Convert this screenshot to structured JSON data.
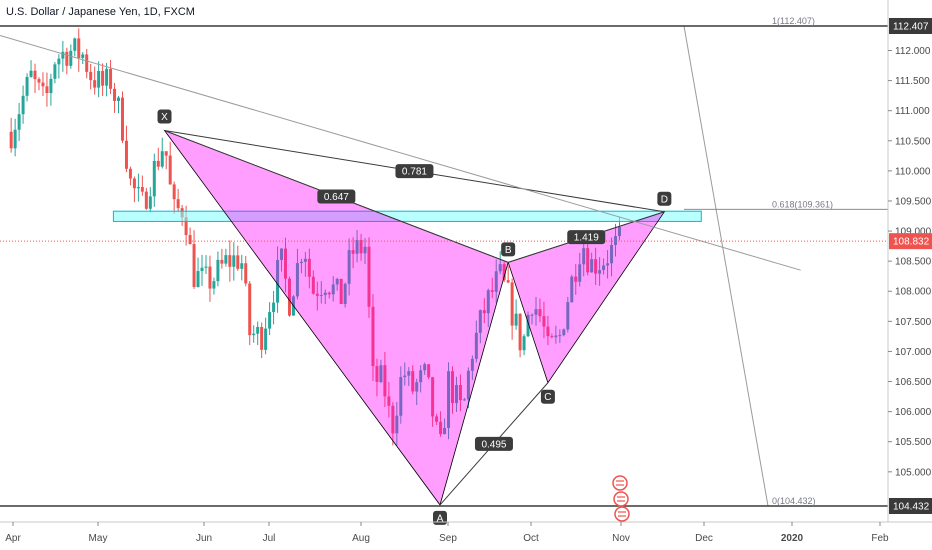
{
  "title": "U.S. Dollar / Japanese Yen, 1D, FXCM",
  "colors": {
    "up": "#26a69a",
    "down": "#ef5350",
    "pattern_fill": "#ff00ff",
    "zone_fill": "#7fffff",
    "price_line": "#ef5350",
    "last_price_bg": "#ef5350",
    "tag_bg": "#3c3c3c",
    "trend": "#9b9b9b"
  },
  "price_scale": {
    "ticks": [
      "112.000",
      "111.500",
      "111.000",
      "110.500",
      "110.000",
      "109.500",
      "109.000",
      "108.500",
      "108.000",
      "107.500",
      "107.000",
      "106.500",
      "106.000",
      "105.500",
      "105.000"
    ],
    "top_label": "112.407",
    "bottom_label": "104.432",
    "last_price": "108.832"
  },
  "time_scale": {
    "labels": [
      "Apr",
      "May",
      "Jun",
      "Jul",
      "Aug",
      "Sep",
      "Oct",
      "Nov",
      "Dec",
      "2020",
      "Feb"
    ]
  },
  "chart_data": {
    "type": "candlestick",
    "ylim": [
      104.25,
      112.55
    ],
    "pattern_points": [
      {
        "label": "X",
        "date": "2019-05-21",
        "price": 110.67
      },
      {
        "label": "A",
        "date": "2019-08-26",
        "price": 104.45
      },
      {
        "label": "B",
        "date": "2019-09-19",
        "price": 108.48
      },
      {
        "label": "C",
        "date": "2019-10-03",
        "price": 106.48
      },
      {
        "label": "D",
        "date": "2019-11-13",
        "price": 109.32
      }
    ],
    "ratios": [
      {
        "label": "0.647",
        "value": 0.647
      },
      {
        "label": "0.781",
        "value": 0.781
      },
      {
        "label": "0.495",
        "value": 0.495
      },
      {
        "label": "1.419",
        "value": 1.419
      }
    ],
    "fib_levels": [
      {
        "label": "1(112.407)",
        "price": 112.407
      },
      {
        "label": "0.618(109.361)",
        "price": 109.361
      },
      {
        "label": "0(104.432)",
        "price": 104.432
      }
    ],
    "zone": {
      "from_date": "2019-05-03",
      "to_date": "2019-11-26",
      "low": 109.16,
      "high": 109.33
    },
    "trendline": {
      "start": {
        "date": "2019-03-27",
        "price": 112.25
      },
      "end": {
        "date": "2019-12-31",
        "price": 108.35
      }
    },
    "closes": [
      {
        "date": "2019-03-28",
        "close": 110.65
      },
      {
        "date": "2019-04-01",
        "close": 111.2
      },
      {
        "date": "2019-04-04",
        "close": 111.55
      },
      {
        "date": "2019-04-09",
        "close": 111.1
      },
      {
        "date": "2019-04-12",
        "close": 111.85
      },
      {
        "date": "2019-04-17",
        "close": 112.0
      },
      {
        "date": "2019-04-22",
        "close": 111.95
      },
      {
        "date": "2019-04-25",
        "close": 111.6
      },
      {
        "date": "2019-04-29",
        "close": 111.4
      },
      {
        "date": "2019-05-02",
        "close": 111.5
      },
      {
        "date": "2019-05-06",
        "close": 110.8
      },
      {
        "date": "2019-05-09",
        "close": 109.8
      },
      {
        "date": "2019-05-13",
        "close": 109.4
      },
      {
        "date": "2019-05-16",
        "close": 109.85
      },
      {
        "date": "2019-05-21",
        "close": 110.5
      },
      {
        "date": "2019-05-24",
        "close": 109.3
      },
      {
        "date": "2019-05-28",
        "close": 109.4
      },
      {
        "date": "2019-05-31",
        "close": 108.3
      },
      {
        "date": "2019-06-04",
        "close": 108.15
      },
      {
        "date": "2019-06-07",
        "close": 108.2
      },
      {
        "date": "2019-06-12",
        "close": 108.5
      },
      {
        "date": "2019-06-17",
        "close": 108.55
      },
      {
        "date": "2019-06-20",
        "close": 107.3
      },
      {
        "date": "2019-06-24",
        "close": 107.25
      },
      {
        "date": "2019-06-27",
        "close": 107.8
      },
      {
        "date": "2019-07-01",
        "close": 108.5
      },
      {
        "date": "2019-07-04",
        "close": 107.85
      },
      {
        "date": "2019-07-09",
        "close": 108.85
      },
      {
        "date": "2019-07-12",
        "close": 108.0
      },
      {
        "date": "2019-07-17",
        "close": 108.2
      },
      {
        "date": "2019-07-22",
        "close": 107.85
      },
      {
        "date": "2019-07-26",
        "close": 108.65
      },
      {
        "date": "2019-07-31",
        "close": 108.75
      },
      {
        "date": "2019-08-02",
        "close": 106.55
      },
      {
        "date": "2019-08-06",
        "close": 106.5
      },
      {
        "date": "2019-08-09",
        "close": 105.7
      },
      {
        "date": "2019-08-13",
        "close": 106.7
      },
      {
        "date": "2019-08-16",
        "close": 106.35
      },
      {
        "date": "2019-08-21",
        "close": 106.6
      },
      {
        "date": "2019-08-26",
        "close": 105.3
      },
      {
        "date": "2019-08-29",
        "close": 106.5
      },
      {
        "date": "2019-09-03",
        "close": 105.95
      },
      {
        "date": "2019-09-06",
        "close": 106.95
      },
      {
        "date": "2019-09-11",
        "close": 107.75
      },
      {
        "date": "2019-09-16",
        "close": 108.25
      },
      {
        "date": "2019-09-19",
        "close": 107.9
      },
      {
        "date": "2019-09-24",
        "close": 107.05
      },
      {
        "date": "2019-09-27",
        "close": 107.9
      },
      {
        "date": "2019-10-01",
        "close": 107.5
      },
      {
        "date": "2019-10-03",
        "close": 107.0
      },
      {
        "date": "2019-10-07",
        "close": 107.2
      },
      {
        "date": "2019-10-10",
        "close": 107.9
      },
      {
        "date": "2019-10-15",
        "close": 108.85
      },
      {
        "date": "2019-10-18",
        "close": 108.45
      },
      {
        "date": "2019-10-22",
        "close": 108.5
      },
      {
        "date": "2019-10-25",
        "close": 108.65
      },
      {
        "date": "2019-10-29",
        "close": 108.85
      }
    ]
  }
}
